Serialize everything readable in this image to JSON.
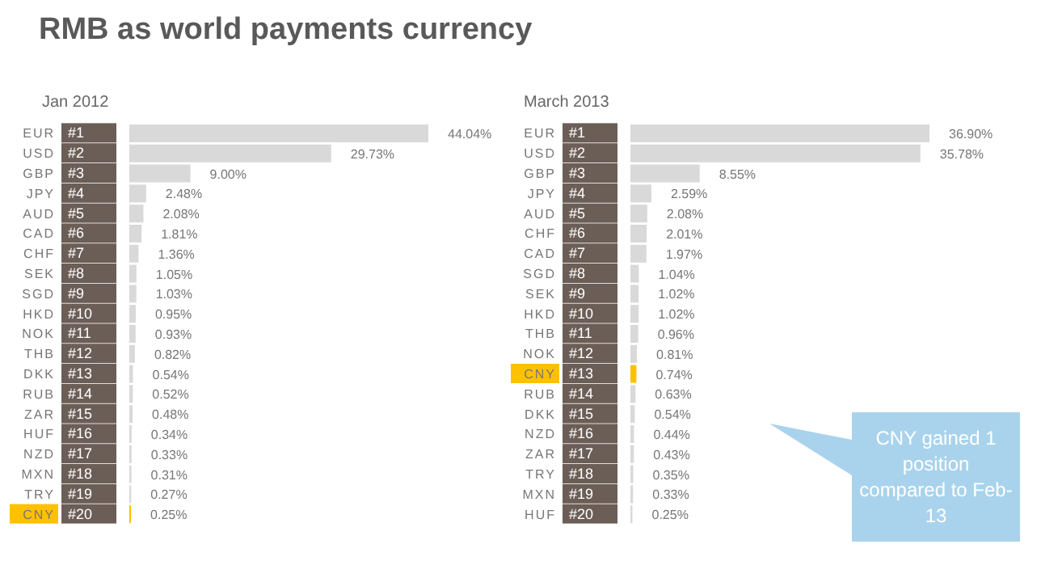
{
  "chart_data": [
    {
      "type": "bar",
      "orientation": "horizontal",
      "title": "RMB as world payments currency",
      "subtitle": "Jan 2012",
      "categories": [
        "EUR #1",
        "USD #2",
        "GBP #3",
        "JPY #4",
        "AUD #5",
        "CAD #6",
        "CHF #7",
        "SEK #8",
        "SGD #9",
        "HKD #10",
        "NOK #11",
        "THB #12",
        "DKK #13",
        "RUB #14",
        "ZAR #15",
        "HUF #16",
        "NZD #17",
        "MXN #18",
        "TRY #19",
        "CNY #20"
      ],
      "values": [
        44.04,
        29.73,
        9.0,
        2.48,
        2.08,
        1.81,
        1.36,
        1.05,
        1.03,
        0.95,
        0.93,
        0.82,
        0.54,
        0.52,
        0.48,
        0.34,
        0.33,
        0.31,
        0.27,
        0.25
      ],
      "value_labels": [
        "44.04%",
        "29.73%",
        "9.00%",
        "2.48%",
        "2.08%",
        "1.81%",
        "1.36%",
        "1.05%",
        "1.03%",
        "0.95%",
        "0.93%",
        "0.82%",
        "0.54%",
        "0.52%",
        "0.48%",
        "0.34%",
        "0.33%",
        "0.31%",
        "0.27%",
        "0.25%"
      ],
      "colors": [
        "#d9d9d9",
        "#d9d9d9",
        "#d9d9d9",
        "#d9d9d9",
        "#d9d9d9",
        "#d9d9d9",
        "#d9d9d9",
        "#d9d9d9",
        "#d9d9d9",
        "#d9d9d9",
        "#d9d9d9",
        "#d9d9d9",
        "#d9d9d9",
        "#d9d9d9",
        "#d9d9d9",
        "#d9d9d9",
        "#d9d9d9",
        "#d9d9d9",
        "#d9d9d9",
        "#ffc000"
      ]
    },
    {
      "type": "bar",
      "orientation": "horizontal",
      "title": "March 2013",
      "categories": [
        "EUR #1",
        "USD #2",
        "GBP #3",
        "JPY #4",
        "AUD #5",
        "CHF #6",
        "CAD #7",
        "SGD #8",
        "SEK #9",
        "HKD #10",
        "THB #11",
        "NOK #12",
        "CNY #13",
        "RUB #14",
        "DKK #15",
        "NZD #16",
        "ZAR #17",
        "TRY #18",
        "MXN #19",
        "HUF #20"
      ],
      "values": [
        36.9,
        35.78,
        8.55,
        2.59,
        2.08,
        2.01,
        1.97,
        1.04,
        1.02,
        1.02,
        0.96,
        0.81,
        0.74,
        0.63,
        0.54,
        0.44,
        0.43,
        0.35,
        0.33,
        0.25
      ],
      "value_labels": [
        "36.90%",
        "35.78%",
        "8.55%",
        "2.59%",
        "2.08%",
        "2.01%",
        "1.97%",
        "1.04%",
        "1.02%",
        "1.02%",
        "0.96%",
        "0.81%",
        "0.74%",
        "0.63%",
        "0.54%",
        "0.44%",
        "0.43%",
        "0.35%",
        "0.33%",
        "0.25%"
      ],
      "colors": [
        "#d9d9d9",
        "#d9d9d9",
        "#d9d9d9",
        "#d9d9d9",
        "#d9d9d9",
        "#d9d9d9",
        "#d9d9d9",
        "#d9d9d9",
        "#d9d9d9",
        "#d9d9d9",
        "#d9d9d9",
        "#d9d9d9",
        "#ffc000",
        "#d9d9d9",
        "#d9d9d9",
        "#d9d9d9",
        "#d9d9d9",
        "#d9d9d9",
        "#d9d9d9",
        "#d9d9d9"
      ],
      "annotations": [
        "CNY gained 1 position compared to Feb-13"
      ]
    }
  ]
}
